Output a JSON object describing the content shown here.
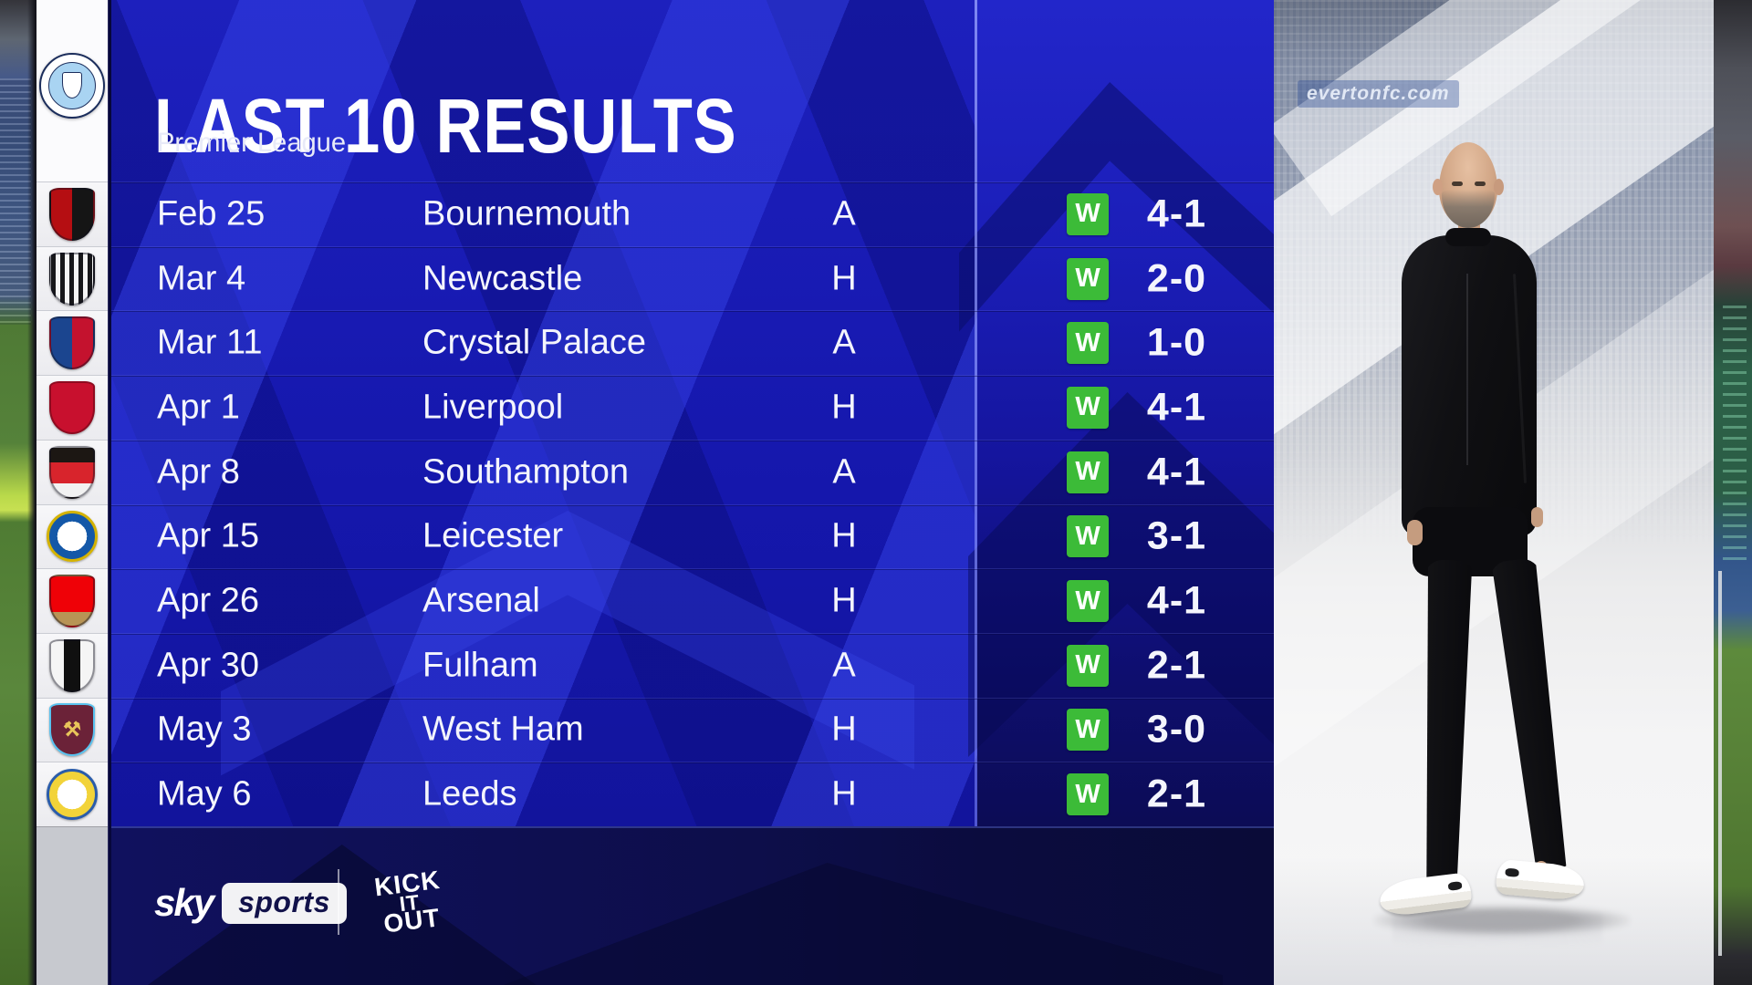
{
  "header": {
    "title": "LAST 10 RESULTS",
    "subtitle": "Premier League"
  },
  "club": {
    "crest_of": "Manchester City"
  },
  "results": [
    {
      "date": "Feb 25",
      "opponent": "Bournemouth",
      "venue": "A",
      "result": "W",
      "score": "4-1",
      "crest": {
        "style": "halves",
        "colors": [
          "#b50e12",
          "#151515"
        ]
      }
    },
    {
      "date": "Mar 4",
      "opponent": "Newcastle",
      "venue": "H",
      "result": "W",
      "score": "2-0",
      "crest": {
        "style": "stripes",
        "colors": [
          "#17171a",
          "#f5f5f5"
        ]
      }
    },
    {
      "date": "Mar 11",
      "opponent": "Crystal Palace",
      "venue": "A",
      "result": "W",
      "score": "1-0",
      "crest": {
        "style": "halves",
        "colors": [
          "#1b458f",
          "#c4122e"
        ]
      }
    },
    {
      "date": "Apr 1",
      "opponent": "Liverpool",
      "venue": "H",
      "result": "W",
      "score": "4-1",
      "crest": {
        "style": "solid",
        "colors": [
          "#c8102e"
        ],
        "border": "#8f0b20"
      }
    },
    {
      "date": "Apr 8",
      "opponent": "Southampton",
      "venue": "A",
      "result": "W",
      "score": "4-1",
      "crest": {
        "style": "bands",
        "colors": [
          "#1c1713",
          "#d8242c",
          "#f2f2f2"
        ]
      }
    },
    {
      "date": "Apr 15",
      "opponent": "Leicester",
      "venue": "H",
      "result": "W",
      "score": "3-1",
      "crest": {
        "style": "circle",
        "colors": [
          "#1458a8",
          "#ffffff",
          "#d4b200"
        ]
      }
    },
    {
      "date": "Apr 26",
      "opponent": "Arsenal",
      "venue": "H",
      "result": "W",
      "score": "4-1",
      "crest": {
        "style": "bands",
        "colors": [
          "#ef0107",
          "#ef0107",
          "#b89455"
        ]
      }
    },
    {
      "date": "Apr 30",
      "opponent": "Fulham",
      "venue": "A",
      "result": "W",
      "score": "2-1",
      "crest": {
        "style": "band-v",
        "colors": [
          "#f5f5f5",
          "#101010",
          "#f5f5f5"
        ]
      }
    },
    {
      "date": "May 3",
      "opponent": "West Ham",
      "venue": "H",
      "result": "W",
      "score": "3-0",
      "crest": {
        "style": "solid",
        "colors": [
          "#6b2238"
        ],
        "border": "#59c2ef",
        "glyph": "⚒"
      }
    },
    {
      "date": "May 6",
      "opponent": "Leeds",
      "venue": "H",
      "result": "W",
      "score": "2-1",
      "crest": {
        "style": "circle",
        "colors": [
          "#f2d339",
          "#ffffff",
          "#2a5caa"
        ]
      }
    }
  ],
  "footer": {
    "sky_word": "sky",
    "sports_word": "sports",
    "kick_it_out": [
      "KICK",
      "IT",
      "OUT"
    ]
  },
  "photo": {
    "watermark": "evertonfc.com"
  },
  "colors": {
    "panel_blue": "#1d20bd",
    "stripe_blue": "#2a34d8",
    "footer_navy": "#0a0b38",
    "win_green": "#3cbb38",
    "rail_white": "#f1f1f4",
    "divider_blue": "#8a90f0",
    "city_ring": "#ffffff",
    "city_fill": "#a9d4f2",
    "city_border": "#1c2e5c"
  }
}
